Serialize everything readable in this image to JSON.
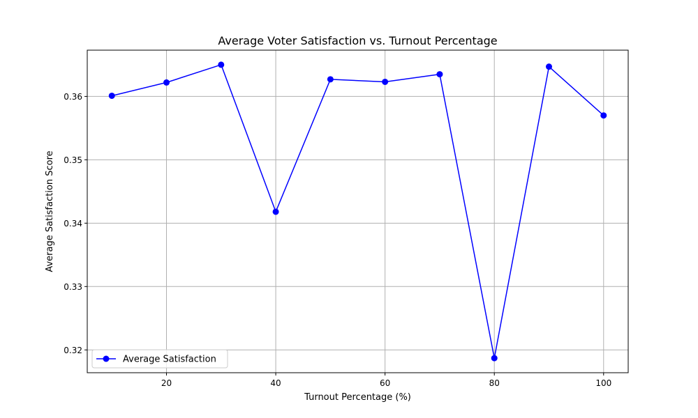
{
  "chart_data": {
    "type": "line",
    "title": "Average Voter Satisfaction vs. Turnout Percentage",
    "xlabel": "Turnout Percentage (%)",
    "ylabel": "Average Satisfaction Score",
    "x": [
      10,
      20,
      30,
      40,
      50,
      60,
      70,
      80,
      90,
      100
    ],
    "series": [
      {
        "name": "Average Satisfaction",
        "color": "#0000ff",
        "marker": "circle",
        "values": [
          0.3601,
          0.3622,
          0.365,
          0.3418,
          0.3627,
          0.3623,
          0.3635,
          0.3187,
          0.3647,
          0.357
        ]
      }
    ],
    "xlim": [
      5.5,
      104.5
    ],
    "ylim": [
      0.3164,
      0.3673
    ],
    "xticks": [
      20,
      40,
      60,
      80,
      100
    ],
    "xtick_labels": [
      "20",
      "40",
      "60",
      "80",
      "100"
    ],
    "yticks": [
      0.32,
      0.33,
      0.34,
      0.35,
      0.36
    ],
    "ytick_labels": [
      "0.32",
      "0.33",
      "0.34",
      "0.35",
      "0.36"
    ],
    "grid": true,
    "legend_position": "lower-left",
    "grid_color": "#b0b0b0",
    "axis_color": "#000000"
  }
}
